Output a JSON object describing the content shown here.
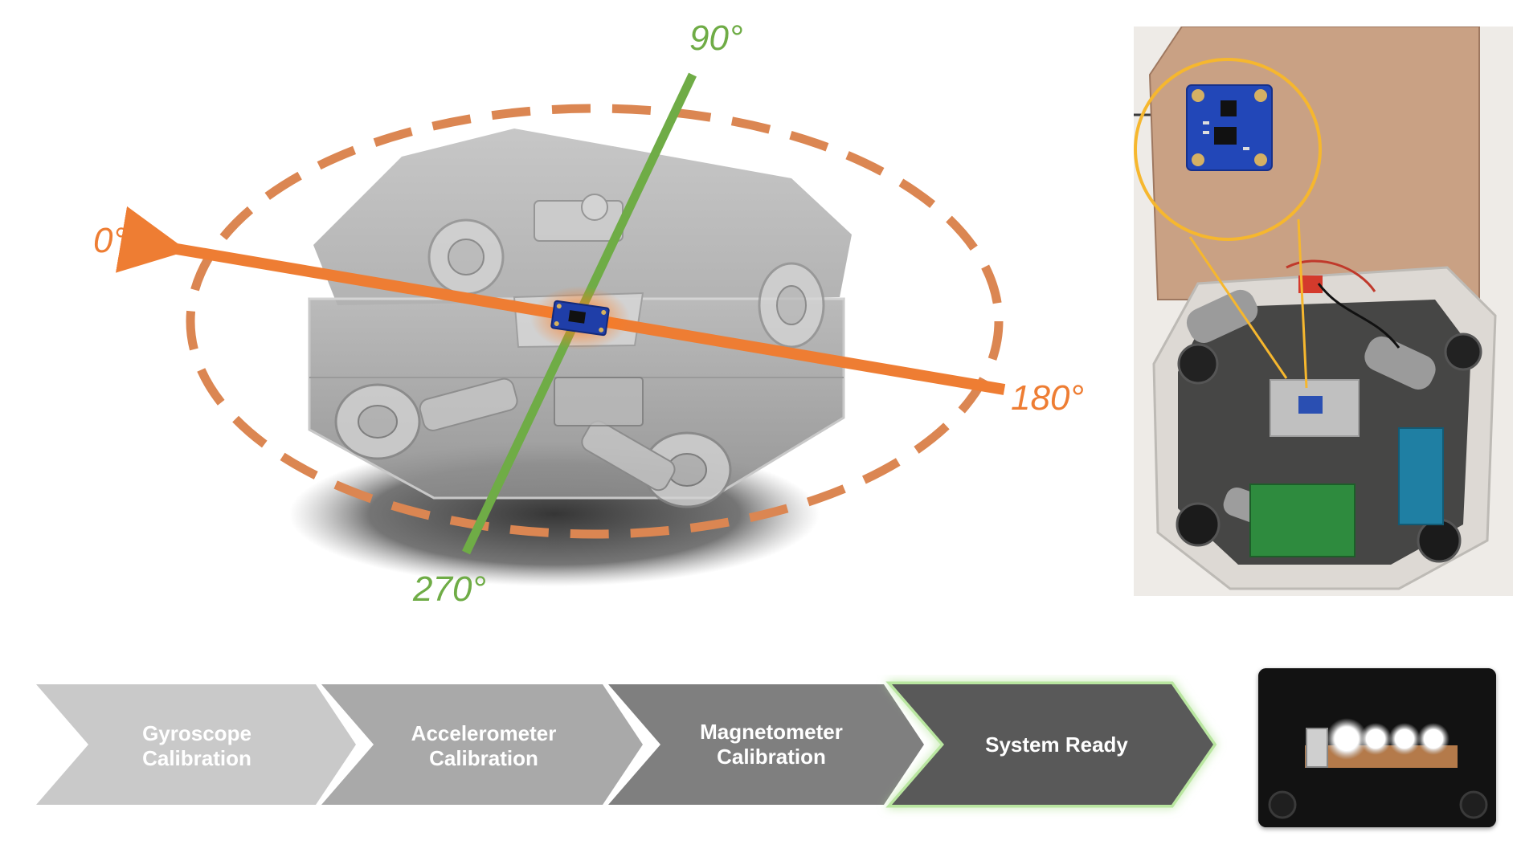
{
  "diagram": {
    "axis_labels": {
      "zero": "0°",
      "ninety": "90°",
      "one_eighty": "180°",
      "two_seventy": "270°"
    },
    "colors": {
      "orange_axis": "#ee7d33",
      "orange_dashed": "#db8652",
      "green_axis": "#6fac46",
      "sensor_board": "#1f3ea8",
      "highlight_circle": "#f6b72e"
    }
  },
  "pipeline": {
    "steps": [
      {
        "line1": "Gyroscope",
        "line2": "Calibration",
        "color": "#c9c9c9"
      },
      {
        "line1": "Accelerometer",
        "line2": "Calibration",
        "color": "#a9a9a9"
      },
      {
        "line1": "Magnetometer",
        "line2": "Calibration",
        "color": "#7f7f7f"
      },
      {
        "line1": "System Ready",
        "line2": "",
        "color": "#595959"
      }
    ],
    "ready_glow_color": "#b9e6a0"
  },
  "led_indicator": {
    "led_count": 4
  }
}
